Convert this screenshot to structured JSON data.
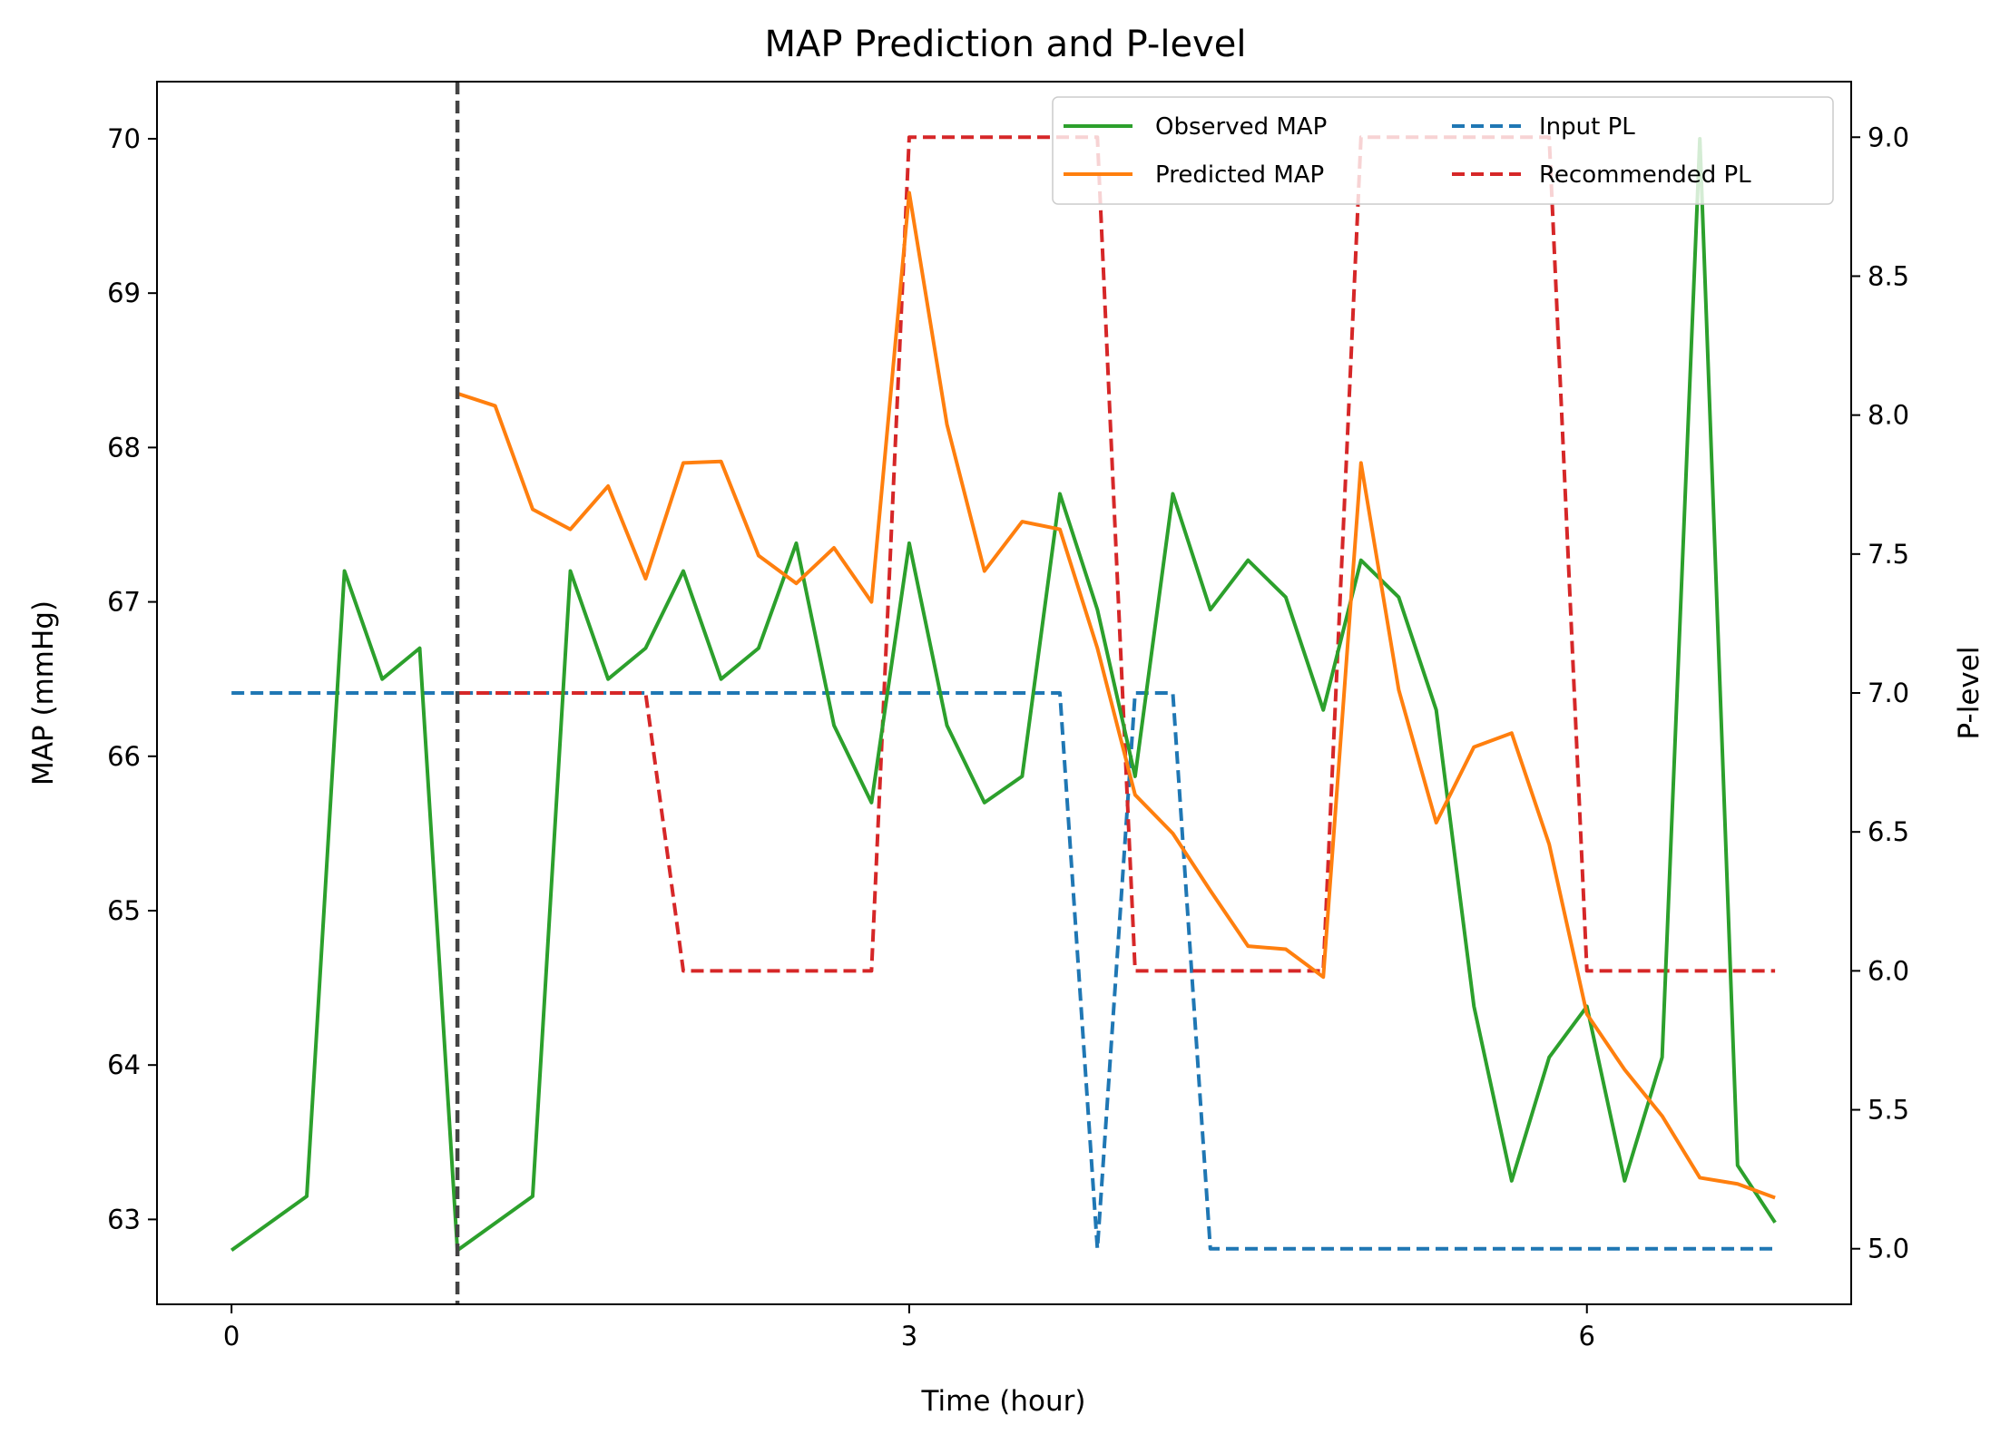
{
  "chart_data": {
    "type": "line",
    "title": "MAP Prediction and P-level",
    "xlabel": "Time (hour)",
    "ylabel_left": "MAP (mmHg)",
    "ylabel_right": "P-level",
    "xlim": [
      -0.33,
      7.17
    ],
    "ylim_left": [
      62.45,
      70.37
    ],
    "ylim_right": [
      4.8,
      9.2
    ],
    "x_ticks": [
      0,
      3,
      6
    ],
    "y_ticks_left": [
      63,
      64,
      65,
      66,
      67,
      68,
      69,
      70
    ],
    "y_ticks_right": [
      "5.0",
      "5.5",
      "6.0",
      "6.5",
      "7.0",
      "7.5",
      "8.0",
      "8.5",
      "9.0"
    ],
    "vline_x": 1.0,
    "legend_position": "upper right",
    "series": [
      {
        "name": "Observed MAP",
        "axis": "left",
        "color": "#2ca02c",
        "style": "solid",
        "x": [
          0.0,
          0.333,
          0.5,
          0.667,
          0.833,
          1.0,
          1.333,
          1.5,
          1.667,
          1.833,
          2.0,
          2.167,
          2.333,
          2.5,
          2.667,
          2.833,
          3.0,
          3.167,
          3.333,
          3.5,
          3.667,
          3.833,
          4.0,
          4.167,
          4.333,
          4.5,
          4.667,
          4.833,
          5.0,
          5.167,
          5.333,
          5.5,
          5.667,
          5.833,
          6.0,
          6.167,
          6.333,
          6.5,
          6.667,
          6.833
        ],
        "y": [
          62.8,
          63.15,
          67.2,
          66.5,
          66.7,
          62.8,
          63.15,
          67.2,
          66.5,
          66.7,
          67.2,
          66.5,
          66.7,
          67.38,
          66.2,
          65.7,
          67.38,
          66.2,
          65.7,
          65.87,
          67.7,
          66.95,
          65.87,
          67.7,
          66.95,
          67.27,
          67.03,
          66.3,
          67.27,
          67.03,
          66.3,
          64.38,
          63.25,
          64.05,
          64.38,
          63.25,
          64.05,
          70.0,
          63.35,
          62.98
        ]
      },
      {
        "name": "Predicted MAP",
        "axis": "left",
        "color": "#ff7f0e",
        "style": "solid",
        "x": [
          1.0,
          1.167,
          1.333,
          1.5,
          1.667,
          1.833,
          2.0,
          2.167,
          2.333,
          2.5,
          2.667,
          2.833,
          3.0,
          3.167,
          3.333,
          3.5,
          3.667,
          3.833,
          4.0,
          4.167,
          4.333,
          4.5,
          4.667,
          4.833,
          5.0,
          5.167,
          5.333,
          5.5,
          5.667,
          5.833,
          6.0,
          6.167,
          6.333,
          6.5,
          6.667,
          6.833
        ],
        "y": [
          68.35,
          68.27,
          67.6,
          67.47,
          67.75,
          67.15,
          67.9,
          67.91,
          67.3,
          67.12,
          67.35,
          67.0,
          69.65,
          68.15,
          67.2,
          67.52,
          67.47,
          66.7,
          65.75,
          65.5,
          65.13,
          64.77,
          64.75,
          64.57,
          67.9,
          66.43,
          65.57,
          66.06,
          66.15,
          65.43,
          64.33,
          63.97,
          63.67,
          63.27,
          63.23,
          63.14
        ]
      },
      {
        "name": "Input PL",
        "axis": "right",
        "color": "#1f77b4",
        "style": "dashed",
        "x": [
          0.0,
          3.667,
          3.833,
          4.0,
          4.167,
          4.333,
          6.833
        ],
        "y": [
          7.0,
          7.0,
          5.0,
          7.0,
          7.0,
          5.0,
          5.0
        ]
      },
      {
        "name": "Recommended PL",
        "axis": "right",
        "color": "#d62728",
        "style": "dashed",
        "x": [
          1.0,
          1.833,
          2.0,
          2.833,
          3.0,
          3.833,
          4.0,
          4.833,
          5.0,
          5.833,
          6.0,
          6.833
        ],
        "y": [
          7.0,
          7.0,
          6.0,
          6.0,
          9.0,
          9.0,
          6.0,
          6.0,
          9.0,
          9.0,
          6.0,
          6.0
        ]
      }
    ]
  }
}
